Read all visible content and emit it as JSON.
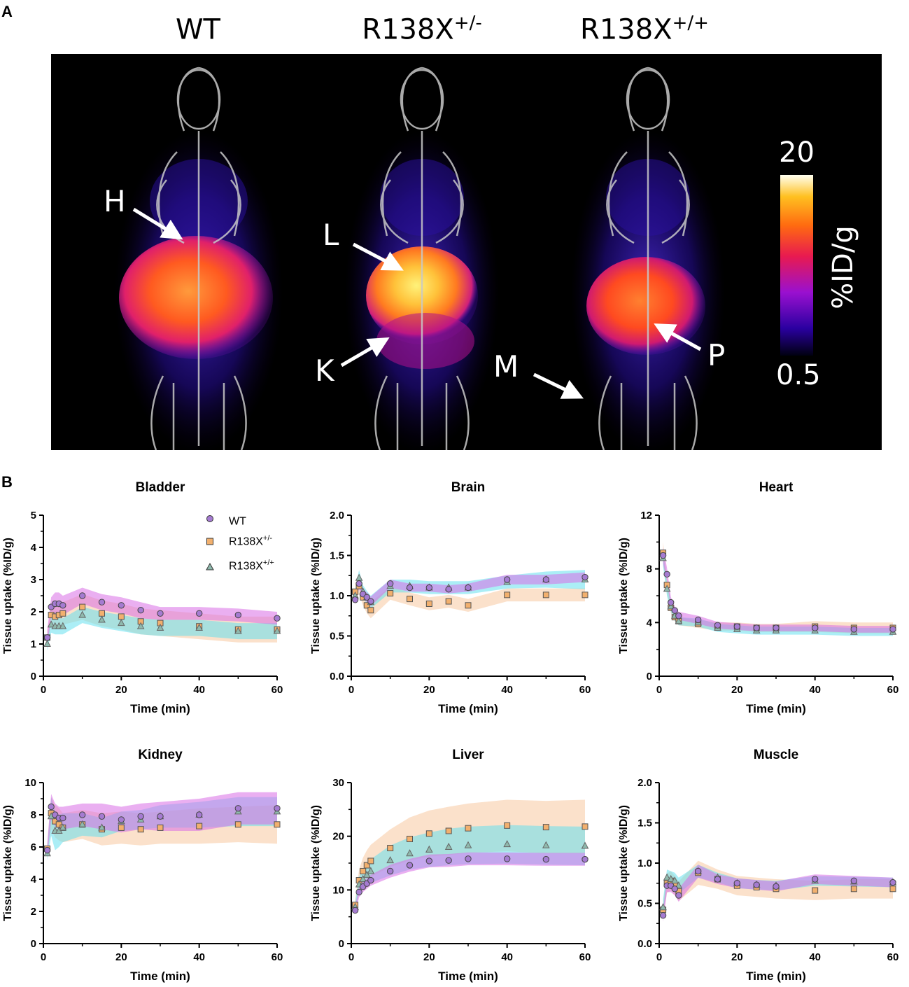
{
  "panel_a": {
    "letter": "A",
    "genotypes": [
      {
        "base": "WT",
        "sup": ""
      },
      {
        "base": "R138X",
        "sup": "+/-"
      },
      {
        "base": "R138X",
        "sup": "+/+"
      }
    ],
    "organ_labels": [
      "H",
      "L",
      "K",
      "M",
      "P"
    ],
    "colorbar": {
      "max": "20",
      "min": "0.5",
      "unit": "%ID/g"
    },
    "image_description_icon": "pet-ct-mouse-image"
  },
  "panel_b": {
    "letter": "B",
    "legend": [
      {
        "base": "WT",
        "sup": "",
        "color": "#a57bd1",
        "marker": "circle"
      },
      {
        "base": "R138X",
        "sup": "+/-",
        "color": "#f2b06e",
        "marker": "square"
      },
      {
        "base": "R138X",
        "sup": "+/+",
        "color": "#8fb9ad",
        "marker": "triangle"
      }
    ]
  },
  "chart_data": [
    {
      "type": "scatter",
      "title": "Bladder",
      "xlabel": "Time (min)",
      "ylabel": "Tissue uptake (%ID/g)",
      "xlim": [
        0,
        60
      ],
      "ylim": [
        0,
        5
      ],
      "xticks": [
        "0",
        "20",
        "40",
        "60"
      ],
      "yticks": [
        "0",
        "1",
        "2",
        "3",
        "4",
        "5"
      ],
      "ytick_values": [
        0,
        1,
        2,
        3,
        4,
        5
      ],
      "x": [
        1,
        2,
        3,
        4,
        5,
        10,
        15,
        20,
        25,
        30,
        40,
        50,
        60
      ],
      "series": [
        {
          "name": "WT",
          "values": [
            1.2,
            2.15,
            2.25,
            2.25,
            2.2,
            2.5,
            2.3,
            2.2,
            2.05,
            1.95,
            1.95,
            1.9,
            1.8
          ],
          "band": [
            0.25,
            0.3,
            0.35,
            0.35,
            0.3,
            0.25,
            0.25,
            0.25,
            0.25,
            0.2,
            0.2,
            0.2,
            0.2
          ]
        },
        {
          "name": "R138X+/-",
          "values": [
            1.2,
            1.9,
            1.85,
            1.9,
            1.95,
            2.15,
            1.95,
            1.85,
            1.7,
            1.65,
            1.55,
            1.45,
            1.45
          ],
          "band": [
            0.2,
            0.3,
            0.35,
            0.35,
            0.35,
            0.4,
            0.4,
            0.4,
            0.4,
            0.4,
            0.4,
            0.4,
            0.4
          ]
        },
        {
          "name": "R138X+/+",
          "values": [
            1.0,
            1.6,
            1.55,
            1.55,
            1.55,
            1.9,
            1.75,
            1.65,
            1.55,
            1.5,
            1.5,
            1.4,
            1.4
          ],
          "band": [
            0.2,
            0.25,
            0.25,
            0.25,
            0.25,
            0.25,
            0.25,
            0.25,
            0.25,
            0.25,
            0.25,
            0.25,
            0.25
          ]
        }
      ]
    },
    {
      "type": "scatter",
      "title": "Brain",
      "xlabel": "Time (min)",
      "ylabel": "Tissue uptake (%ID/g)",
      "xlim": [
        0,
        60
      ],
      "ylim": [
        0,
        2
      ],
      "xticks": [
        "0",
        "20",
        "40",
        "60"
      ],
      "yticks": [
        "0.0",
        "0.5",
        "1.0",
        "1.5",
        "2.0"
      ],
      "ytick_values": [
        0,
        0.5,
        1.0,
        1.5,
        2.0
      ],
      "x": [
        1,
        2,
        3,
        4,
        5,
        10,
        15,
        20,
        25,
        30,
        40,
        50,
        60
      ],
      "series": [
        {
          "name": "WT",
          "values": [
            0.95,
            1.15,
            1.02,
            0.98,
            0.93,
            1.15,
            1.1,
            1.1,
            1.08,
            1.1,
            1.2,
            1.2,
            1.23
          ],
          "band": [
            0.06,
            0.06,
            0.06,
            0.06,
            0.06,
            0.05,
            0.05,
            0.05,
            0.05,
            0.05,
            0.06,
            0.06,
            0.06
          ]
        },
        {
          "name": "R138X+/-",
          "values": [
            1.05,
            1.12,
            0.98,
            0.88,
            0.82,
            1.03,
            0.96,
            0.9,
            0.93,
            0.88,
            1.01,
            1.01,
            1.01
          ],
          "band": [
            0.1,
            0.1,
            0.1,
            0.1,
            0.1,
            0.08,
            0.08,
            0.08,
            0.08,
            0.08,
            0.08,
            0.08,
            0.08
          ]
        },
        {
          "name": "R138X+/+",
          "values": [
            1.0,
            1.22,
            1.05,
            0.98,
            0.92,
            1.12,
            1.12,
            1.1,
            1.1,
            1.1,
            1.17,
            1.2,
            1.2
          ],
          "band": [
            0.08,
            0.1,
            0.08,
            0.08,
            0.08,
            0.08,
            0.08,
            0.08,
            0.08,
            0.08,
            0.08,
            0.1,
            0.12
          ]
        }
      ]
    },
    {
      "type": "scatter",
      "title": "Heart",
      "xlabel": "Time (min)",
      "ylabel": "Tissue uptake (%ID/g)",
      "xlim": [
        0,
        60
      ],
      "ylim": [
        0,
        12
      ],
      "xticks": [
        "0",
        "20",
        "40",
        "60"
      ],
      "yticks": [
        "0",
        "4",
        "8",
        "12"
      ],
      "ytick_values": [
        0,
        4,
        8,
        12
      ],
      "x": [
        1,
        2,
        3,
        4,
        5,
        10,
        15,
        20,
        25,
        30,
        40,
        50,
        60
      ],
      "series": [
        {
          "name": "WT",
          "values": [
            9.0,
            7.6,
            5.5,
            4.9,
            4.5,
            4.2,
            3.8,
            3.7,
            3.6,
            3.6,
            3.6,
            3.5,
            3.5
          ],
          "band": [
            0.6,
            0.5,
            0.4,
            0.3,
            0.3,
            0.3,
            0.25,
            0.25,
            0.25,
            0.25,
            0.25,
            0.25,
            0.25
          ]
        },
        {
          "name": "R138X+/-",
          "values": [
            9.2,
            6.8,
            5.1,
            4.4,
            4.1,
            3.9,
            3.7,
            3.7,
            3.6,
            3.6,
            3.7,
            3.6,
            3.6
          ],
          "band": [
            0.8,
            0.6,
            0.4,
            0.3,
            0.3,
            0.3,
            0.3,
            0.3,
            0.3,
            0.3,
            0.4,
            0.4,
            0.4
          ]
        },
        {
          "name": "R138X+/+",
          "values": [
            8.8,
            6.5,
            5.2,
            4.5,
            4.1,
            4.0,
            3.6,
            3.5,
            3.4,
            3.4,
            3.4,
            3.3,
            3.3
          ],
          "band": [
            0.6,
            0.5,
            0.4,
            0.35,
            0.3,
            0.3,
            0.3,
            0.3,
            0.3,
            0.3,
            0.3,
            0.3,
            0.3
          ]
        }
      ]
    },
    {
      "type": "scatter",
      "title": "Kidney",
      "xlabel": "Time (min)",
      "ylabel": "Tissue uptake (%ID/g)",
      "xlim": [
        0,
        60
      ],
      "ylim": [
        0,
        10
      ],
      "xticks": [
        "0",
        "20",
        "40",
        "60"
      ],
      "yticks": [
        "0",
        "2",
        "4",
        "6",
        "8",
        "10"
      ],
      "ytick_values": [
        0,
        2,
        4,
        6,
        8,
        10
      ],
      "x": [
        1,
        2,
        3,
        4,
        5,
        10,
        15,
        20,
        25,
        30,
        40,
        50,
        60
      ],
      "series": [
        {
          "name": "WT",
          "values": [
            5.8,
            8.5,
            8.0,
            7.8,
            7.8,
            8.0,
            7.9,
            7.7,
            7.9,
            7.9,
            8.0,
            8.4,
            8.4
          ],
          "band": [
            0.4,
            0.8,
            0.7,
            0.7,
            0.7,
            0.7,
            0.8,
            0.8,
            0.8,
            0.9,
            1.0,
            1.0,
            1.0
          ]
        },
        {
          "name": "R138X+/-",
          "values": [
            5.9,
            8.1,
            7.6,
            7.4,
            7.2,
            7.4,
            7.1,
            7.2,
            7.1,
            7.2,
            7.3,
            7.4,
            7.4
          ],
          "band": [
            0.4,
            1.0,
            1.0,
            1.0,
            0.9,
            0.9,
            1.0,
            1.0,
            1.0,
            1.0,
            1.1,
            1.1,
            1.2
          ]
        },
        {
          "name": "R138X+/+",
          "values": [
            5.6,
            7.9,
            7.0,
            7.0,
            7.2,
            7.4,
            7.2,
            7.6,
            7.7,
            7.9,
            8.0,
            8.2,
            8.2
          ],
          "band": [
            0.4,
            1.2,
            1.2,
            1.0,
            0.9,
            0.7,
            0.6,
            0.6,
            0.6,
            0.7,
            0.8,
            0.9,
            0.9
          ]
        }
      ]
    },
    {
      "type": "scatter",
      "title": "Liver",
      "xlabel": "Time (min)",
      "ylabel": "Tissue uptake (%ID/g)",
      "xlim": [
        0,
        60
      ],
      "ylim": [
        0,
        30
      ],
      "xticks": [
        "0",
        "20",
        "40",
        "60"
      ],
      "yticks": [
        "0",
        "10",
        "20",
        "30"
      ],
      "ytick_values": [
        0,
        10,
        20,
        30
      ],
      "x": [
        1,
        2,
        3,
        4,
        5,
        10,
        15,
        20,
        25,
        30,
        40,
        50,
        60
      ],
      "series": [
        {
          "name": "WT",
          "values": [
            6.2,
            9.6,
            10.6,
            11.2,
            11.8,
            13.5,
            14.6,
            15.4,
            15.5,
            15.8,
            15.8,
            15.7,
            15.7
          ],
          "band": [
            0.8,
            1.0,
            1.0,
            1.0,
            1.0,
            1.2,
            1.2,
            1.2,
            1.2,
            1.2,
            1.2,
            1.2,
            1.2
          ]
        },
        {
          "name": "R138X+/-",
          "values": [
            7.2,
            11.8,
            13.5,
            14.6,
            15.4,
            17.8,
            19.5,
            20.5,
            21.0,
            21.5,
            22.0,
            21.7,
            21.8
          ],
          "band": [
            1.0,
            2.0,
            2.5,
            2.8,
            3.0,
            3.5,
            4.0,
            4.3,
            4.5,
            4.6,
            4.8,
            4.9,
            5.0
          ]
        },
        {
          "name": "R138X+/+",
          "values": [
            6.8,
            11.0,
            12.0,
            12.8,
            13.5,
            15.5,
            16.8,
            17.5,
            18.0,
            18.3,
            18.5,
            18.3,
            18.2
          ],
          "band": [
            1.0,
            1.5,
            1.8,
            2.0,
            2.2,
            2.8,
            3.0,
            3.2,
            3.4,
            3.5,
            3.6,
            3.6,
            3.6
          ]
        }
      ]
    },
    {
      "type": "scatter",
      "title": "Muscle",
      "xlabel": "Time (min)",
      "ylabel": "Tissue uptake (%ID/g)",
      "xlim": [
        0,
        60
      ],
      "ylim": [
        0,
        2
      ],
      "xticks": [
        "0",
        "20",
        "40",
        "60"
      ],
      "yticks": [
        "0.0",
        "0.5",
        "1.0",
        "1.5",
        "2.0"
      ],
      "ytick_values": [
        0,
        0.5,
        1.0,
        1.5,
        2.0
      ],
      "x": [
        1,
        2,
        3,
        4,
        5,
        10,
        15,
        20,
        25,
        30,
        40,
        50,
        60
      ],
      "series": [
        {
          "name": "WT",
          "values": [
            0.35,
            0.72,
            0.72,
            0.68,
            0.6,
            0.9,
            0.8,
            0.75,
            0.73,
            0.71,
            0.8,
            0.78,
            0.76
          ],
          "band": [
            0.08,
            0.08,
            0.08,
            0.08,
            0.08,
            0.08,
            0.06,
            0.06,
            0.06,
            0.06,
            0.06,
            0.06,
            0.06
          ]
        },
        {
          "name": "R138X+/-",
          "values": [
            0.42,
            0.75,
            0.78,
            0.72,
            0.65,
            0.88,
            0.8,
            0.72,
            0.7,
            0.68,
            0.66,
            0.68,
            0.68
          ],
          "band": [
            0.1,
            0.12,
            0.12,
            0.12,
            0.12,
            0.15,
            0.12,
            0.12,
            0.12,
            0.12,
            0.12,
            0.12,
            0.12
          ]
        },
        {
          "name": "R138X+/+",
          "values": [
            0.45,
            0.82,
            0.8,
            0.78,
            0.72,
            0.9,
            0.82,
            0.75,
            0.73,
            0.72,
            0.78,
            0.77,
            0.76
          ],
          "band": [
            0.1,
            0.1,
            0.1,
            0.1,
            0.1,
            0.08,
            0.06,
            0.06,
            0.06,
            0.06,
            0.06,
            0.06,
            0.06
          ]
        }
      ]
    }
  ]
}
